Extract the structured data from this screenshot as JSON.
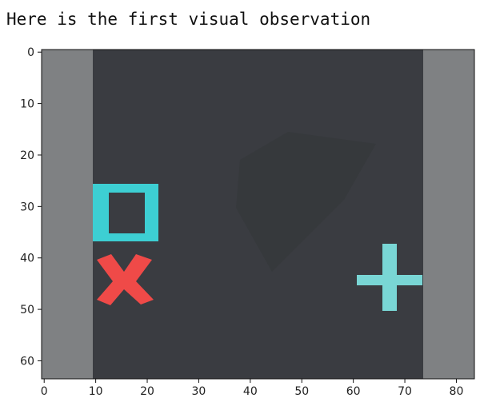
{
  "caption": "Here is the first visual observation",
  "colors": {
    "arena_floor": "#3a3c41",
    "wall": "#7f8183",
    "square_color": "#3dcfd3",
    "x_color": "#ef4a48",
    "plus_color": "#79d6d5"
  },
  "axes": {
    "x_ticks": [
      0,
      10,
      20,
      30,
      40,
      50,
      60,
      70,
      80
    ],
    "y_ticks": [
      0,
      10,
      20,
      30,
      40,
      50,
      60
    ],
    "x_range": [
      -0.5,
      83.5
    ],
    "y_range": [
      -0.5,
      63.5
    ]
  },
  "objects": [
    {
      "type": "square-outline",
      "name": "cyan-square",
      "color": "#3dcfd3"
    },
    {
      "type": "x-mark",
      "name": "red-x",
      "color": "#ef4a48"
    },
    {
      "type": "plus",
      "name": "cyan-plus",
      "color": "#79d6d5"
    }
  ]
}
